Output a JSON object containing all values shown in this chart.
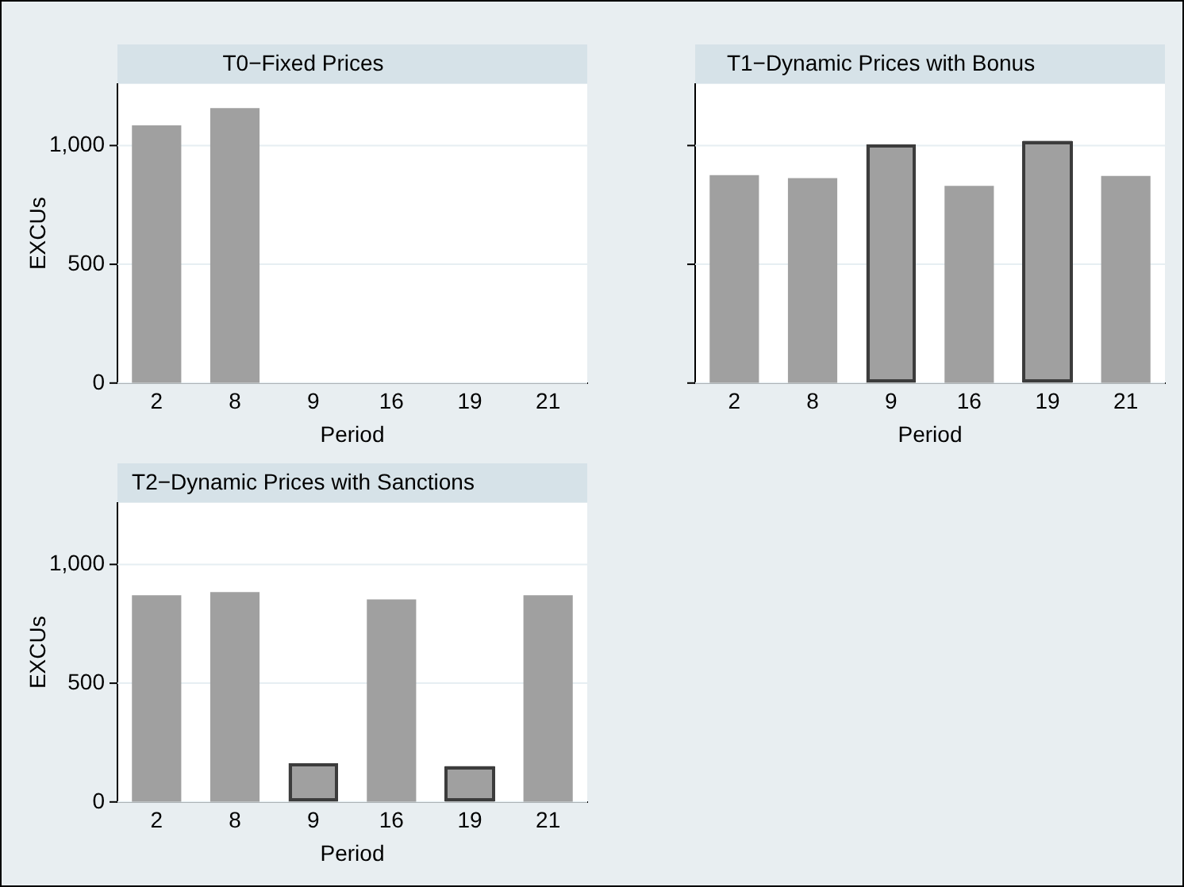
{
  "chart_data": [
    {
      "type": "bar",
      "title": "T0−Fixed Prices",
      "xlabel": "Period",
      "ylabel": "EXCUs",
      "categories": [
        "2",
        "8",
        "9",
        "16",
        "19",
        "21"
      ],
      "series": [
        {
          "color": "#a0a0a0",
          "values": [
            1085,
            1158,
            null,
            null,
            null,
            null
          ]
        }
      ],
      "ylim": [
        0,
        1260
      ],
      "yticks": [
        0,
        500,
        {
          "value": 1000,
          "label": "1,000"
        }
      ],
      "grid": "y",
      "legend": false
    },
    {
      "type": "bar",
      "title": "T1−Dynamic Prices with Bonus",
      "xlabel": "Period",
      "categories": [
        "2",
        "8",
        "9",
        "16",
        "19",
        "21"
      ],
      "series": [
        {
          "color": "#a0a0a0",
          "values": [
            875,
            863,
            null,
            830,
            null,
            872
          ]
        },
        {
          "color": "#a0a0a0",
          "values": [
            null,
            null,
            1005,
            null,
            1021,
            null
          ]
        }
      ],
      "ylim": [
        0,
        1260
      ],
      "yticks": [
        0,
        500,
        1000
      ],
      "grid": "y",
      "legend": false,
      "tick_labels": "x"
    },
    {
      "type": "bar",
      "title": "T2−Dynamic Prices with Sanctions",
      "xlabel": "Period",
      "ylabel": "EXCUs",
      "categories": [
        "2",
        "8",
        "9",
        "16",
        "19",
        "21"
      ],
      "series": [
        {
          "color": "#a0a0a0",
          "values": [
            870,
            884,
            null,
            853,
            null,
            870
          ]
        },
        {
          "color": "#a0a0a0",
          "values": [
            null,
            null,
            163,
            null,
            151,
            null
          ]
        }
      ],
      "ylim": [
        0,
        1260
      ],
      "yticks": [
        0,
        500,
        {
          "value": 1000,
          "label": "1,000"
        }
      ],
      "grid": "y",
      "legend": false
    }
  ]
}
